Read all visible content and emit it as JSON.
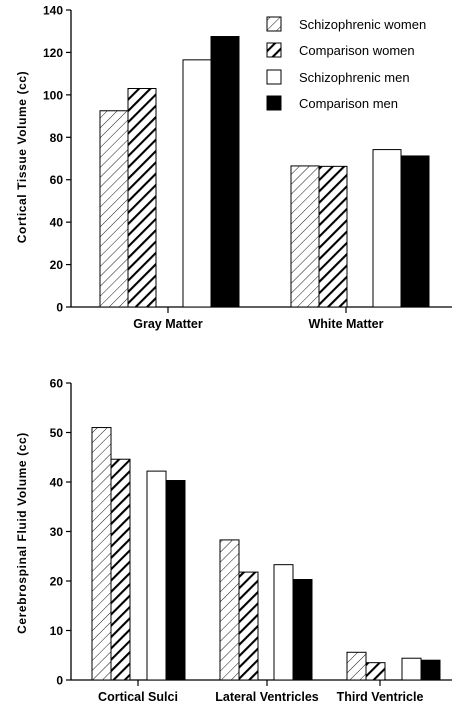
{
  "chart_data": [
    {
      "type": "bar",
      "ylabel": "Cortical  Tissue  Volume  (cc)",
      "ylim": [
        0,
        140
      ],
      "yticks": [
        0,
        20,
        40,
        60,
        80,
        100,
        120,
        140
      ],
      "categories": [
        "Gray Matter",
        "White Matter"
      ],
      "series": [
        {
          "name": "Schizophrenic women",
          "values": [
            92.5,
            66.5
          ],
          "style": "hatch-light"
        },
        {
          "name": "Comparison women",
          "values": [
            103,
            66.3
          ],
          "style": "hatch-heavy"
        },
        {
          "name": "Schizophrenic men",
          "values": [
            116.5,
            74.2
          ],
          "style": "white"
        },
        {
          "name": "Comparison men",
          "values": [
            127.5,
            71.2
          ],
          "style": "black"
        }
      ],
      "legend": "top-right",
      "grid": false
    },
    {
      "type": "bar",
      "ylabel": "Cerebrospinal  Fluid  Volume  (cc)",
      "ylim": [
        0,
        60
      ],
      "yticks": [
        0,
        10,
        20,
        30,
        40,
        50,
        60
      ],
      "categories": [
        "Cortical Sulci",
        "Lateral Ventricles",
        "Third Ventricle"
      ],
      "series": [
        {
          "name": "Schizophrenic women",
          "values": [
            51,
            28.3,
            5.6
          ],
          "style": "hatch-light"
        },
        {
          "name": "Comparison women",
          "values": [
            44.6,
            21.8,
            3.5
          ],
          "style": "hatch-heavy"
        },
        {
          "name": "Schizophrenic men",
          "values": [
            42.2,
            23.3,
            4.4
          ],
          "style": "white"
        },
        {
          "name": "Comparison men",
          "values": [
            40.3,
            20.3,
            4.0
          ],
          "style": "black"
        }
      ],
      "grid": false
    }
  ]
}
